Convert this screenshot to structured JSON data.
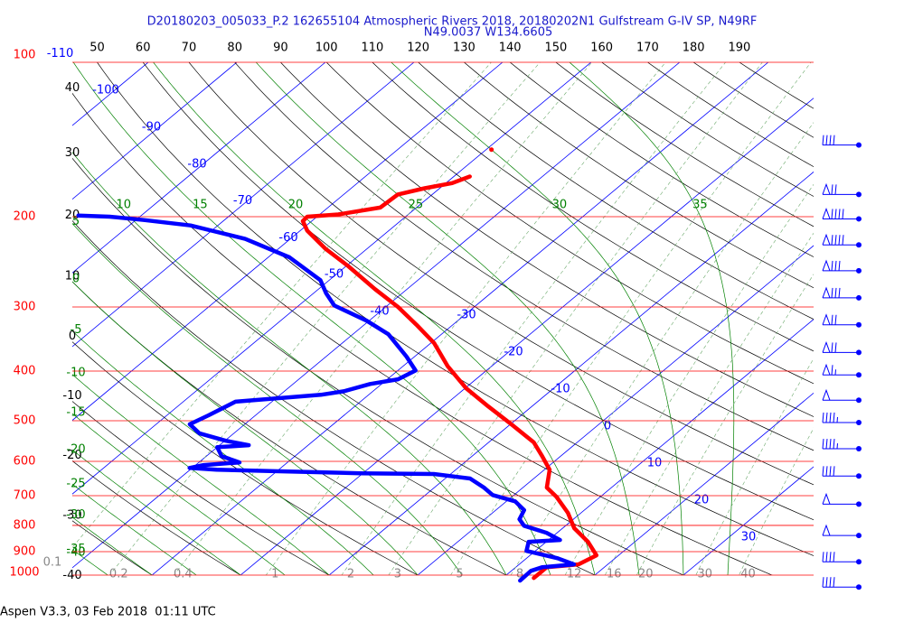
{
  "chart_data": {
    "type": "skewt",
    "title": "D20180203_005033_P.2 162655104 Atmospheric Rivers 2018, 20180202N1 Gulfstream G-IV SP, N49RF",
    "subtitle": "N49.0037 W134.6605",
    "footer": "Aspen V3.3, 03 Feb 2018  01:11 UTC",
    "ylog": true,
    "ylim": [
      1000,
      100
    ],
    "yticks": [
      100,
      200,
      300,
      400,
      500,
      600,
      700,
      800,
      900,
      1000
    ],
    "pressure_color": "#ff0000",
    "xlim": [
      -39,
      44.7
    ],
    "isotherms": {
      "color": "#0000ff",
      "values": [
        -110,
        -100,
        -90,
        -80,
        -70,
        -60,
        -50,
        -40,
        -30,
        -20,
        -10,
        0,
        10,
        20,
        30
      ]
    },
    "dry_adiabats": {
      "color": "#000000",
      "values": [
        -40,
        -30,
        -20,
        -10,
        0,
        10,
        20,
        30,
        40,
        50,
        60,
        70,
        80,
        90,
        100,
        110,
        120,
        130,
        140,
        150,
        160,
        170,
        180,
        190
      ]
    },
    "moist_adiabats": {
      "color": "#008000",
      "values": [
        -40,
        -35,
        -30,
        -25,
        -20,
        -15,
        -10,
        -5,
        0,
        5,
        10,
        15,
        20,
        25,
        30,
        35
      ]
    },
    "mixing_ratios": {
      "color": "#888888",
      "values": [
        0.1,
        0.2,
        0.4,
        1,
        2,
        3,
        5,
        8,
        12,
        16,
        20,
        30,
        40
      ]
    },
    "series": [
      {
        "color": "#ff0000",
        "x": [
          13.5,
          13.5,
          16.7,
          17.5,
          14.7,
          11.3,
          8.5,
          5.0,
          2.7,
          0.6,
          -2.1,
          -4.9,
          -9.9,
          -14.9,
          -19.9,
          -25.0,
          -29.6,
          -34.1,
          -38.6,
          -43.6,
          -49.7,
          -54.7,
          -59.2,
          -61.0,
          -61.1,
          -57.9,
          -54.1,
          -53.9,
          -51.7,
          -49.3,
          -48.2,
          null,
          -49.4
        ],
        "values": [
          1013,
          965,
          953,
          915,
          861,
          810,
          756,
          703,
          675,
          623,
          586,
          551,
          508,
          469,
          432,
          391,
          353,
          325,
          300,
          277,
          250,
          231,
          213,
          204,
          200,
          198,
          192,
          181,
          176,
          172,
          167,
          null,
          148
        ]
      },
      {
        "color": "#0000ff",
        "x": [
          12.3,
          12.2,
          13.0,
          16.2,
          13.5,
          9.0,
          8.0,
          11.3,
          8.8,
          5.3,
          3.9,
          3.2,
          1.0,
          -2.4,
          -4.4,
          -7.2,
          -11.9,
          -20.2,
          -28.6,
          -37.0,
          -40.3,
          -39.1,
          -35.4,
          -38.3,
          -40.0,
          -36.7,
          -39.9,
          -43.9,
          -46.2,
          -45.3,
          -44.1,
          -35.4,
          -33.3,
          -31.3,
          -28.8,
          -28.0,
          -30.9,
          -36.0,
          -40.3,
          -46.0,
          -48.6,
          -51.0,
          -57.6,
          -65.1,
          -73.1,
          -79.1,
          -83.4,
          -87.1
        ],
        "values": [
          1025,
          981,
          965,
          953,
          927,
          897,
          861,
          854,
          827,
          801,
          778,
          747,
          718,
          698,
          675,
          648,
          635,
          633,
          628,
          623,
          618,
          610,
          603,
          586,
          563,
          558,
          547,
          529,
          508,
          488,
          459,
          445,
          438,
          424,
          415,
          399,
          375,
          339,
          319,
          298,
          282,
          266,
          240,
          221,
          208,
          203,
          200,
          199
        ]
      }
    ],
    "wind": {
      "color": "#0000ff",
      "pressure": [
        145,
        181,
        202,
        227,
        255,
        288,
        325,
        368,
        407,
        456,
        504,
        567,
        641,
        727,
        837,
        942,
        1055
      ],
      "speed": [
        40,
        70,
        90,
        90,
        80,
        80,
        70,
        70,
        65,
        50,
        45,
        45,
        40,
        50,
        50,
        40,
        40
      ]
    }
  }
}
